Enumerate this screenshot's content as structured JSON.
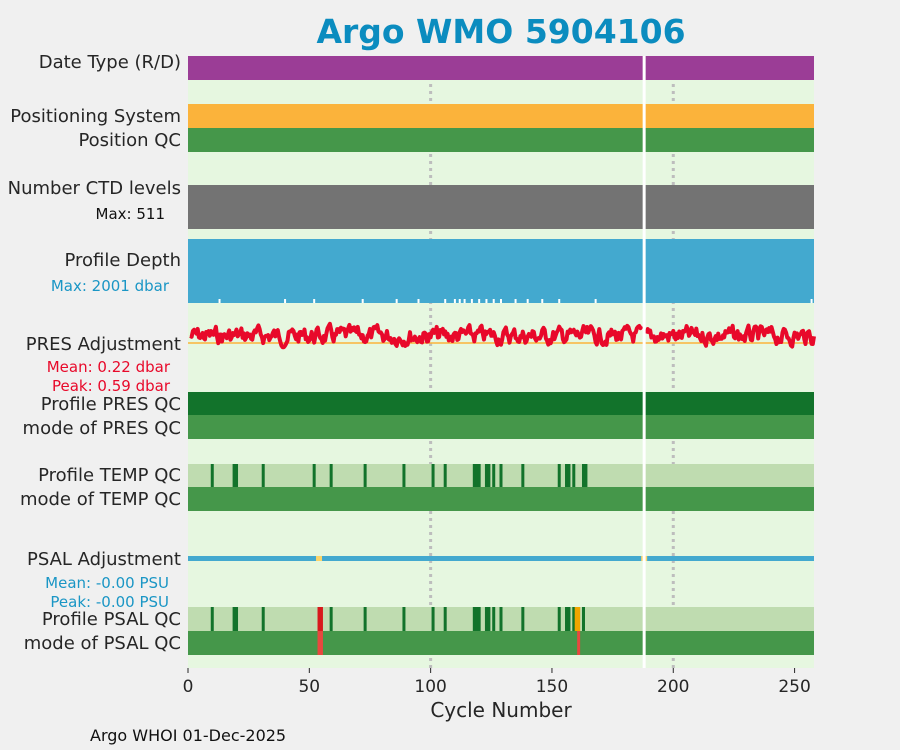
{
  "chart_data": {
    "type": "timeline",
    "title": "Argo WMO 5904106",
    "xlabel": "Cycle Number",
    "xlim": [
      0,
      258
    ],
    "xticks": [
      0,
      50,
      100,
      150,
      200,
      250
    ],
    "vertical_grid": [
      100,
      200
    ],
    "gap_cycle": 188,
    "rows": {
      "date_type": {
        "label": "Date Type (R/D)",
        "color": "#9b3d96"
      },
      "positioning_system": {
        "label": "Positioning System",
        "color": "#fbb33b"
      },
      "position_qc": {
        "label": "Position QC",
        "color": "#45974a"
      },
      "ctd_levels": {
        "label": "Number CTD levels",
        "note": "Max: 511",
        "color": "#737373"
      },
      "profile_depth": {
        "label": "Profile Depth",
        "note": "Max: 2001 dbar",
        "color": "#43a9cf",
        "shallow_cycles": [
          13,
          40,
          52,
          72,
          86,
          95,
          106,
          110,
          112,
          114,
          117,
          120,
          123,
          126,
          129,
          135,
          140,
          146,
          153,
          168,
          257
        ]
      },
      "pres_adjustment": {
        "label": "PRES Adjustment",
        "mean": "Mean: 0.22 dbar",
        "peak": "Peak: 0.59 dbar",
        "color": "#e8092a"
      },
      "profile_pres_qc": {
        "label": "Profile PRES QC",
        "color": "#12732b"
      },
      "mode_pres_qc": {
        "label": "mode of PRES QC",
        "color": "#45974a"
      },
      "profile_temp_qc": {
        "label": "Profile TEMP QC",
        "color": "#bfdcb0",
        "flag_cycles": [
          10,
          19,
          20,
          31,
          52,
          59,
          73,
          89,
          101,
          106,
          118,
          119,
          120,
          123,
          124,
          126,
          129,
          138,
          153,
          156,
          157,
          159,
          163,
          164
        ]
      },
      "mode_temp_qc": {
        "label": "mode of TEMP QC",
        "color": "#45974a"
      },
      "psal_adjustment": {
        "label": "PSAL Adjustment",
        "mean": "Mean: -0.00 PSU",
        "peak": "Peak: -0.00 PSU",
        "color": "#43a9cf",
        "gap_marks": [
          54,
          188
        ]
      },
      "profile_psal_qc": {
        "label": "Profile PSAL QC",
        "color": "#bfdcb0",
        "flag_cycles": [
          10,
          19,
          20,
          31,
          59,
          73,
          89,
          101,
          106,
          118,
          119,
          120,
          123,
          124,
          126,
          129,
          138,
          153,
          156,
          157,
          159,
          163
        ],
        "bad_cycles": [
          54,
          55
        ],
        "probably_bad_cycles": [
          160,
          161
        ]
      },
      "mode_psal_qc": {
        "label": "mode of PSAL QC",
        "color": "#45974a",
        "bad_cycles": [
          54,
          55,
          161
        ]
      }
    }
  },
  "footer": "Argo WHOI 01-Dec-2025"
}
